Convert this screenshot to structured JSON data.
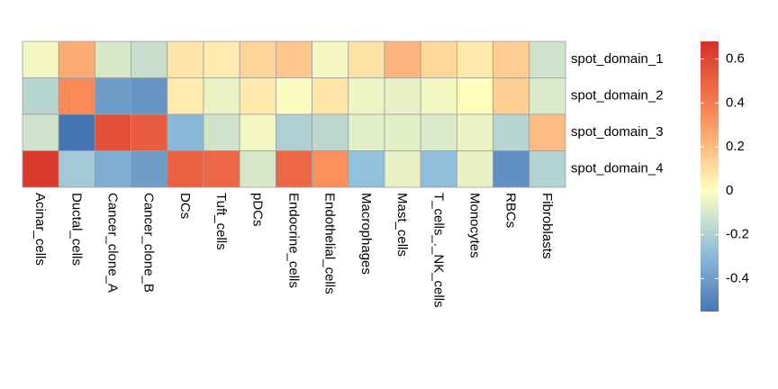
{
  "chart_data": {
    "type": "heatmap",
    "title": "",
    "xlabel": "",
    "ylabel": "",
    "columns": [
      "Acinar_cells",
      "Ductal_cells",
      "Cancer_clone_A",
      "Cancer_clone_B",
      "DCs",
      "Tuft_cells",
      "pDCs",
      "Endocrine_cells",
      "Endothelial_cells",
      "Macrophages",
      "Mast_cells",
      "T_cells_._NK_cells",
      "Monocytes",
      "RBCs",
      "Fibroblasts"
    ],
    "rows": [
      "spot_domain_1",
      "spot_domain_2",
      "spot_domain_3",
      "spot_domain_4"
    ],
    "values": [
      [
        -0.03,
        0.25,
        -0.1,
        -0.14,
        0.08,
        0.06,
        0.13,
        0.17,
        -0.03,
        0.09,
        0.22,
        0.12,
        0.07,
        0.15,
        -0.12
      ],
      [
        -0.18,
        0.35,
        -0.4,
        -0.43,
        0.06,
        -0.05,
        0.07,
        -0.01,
        0.08,
        -0.04,
        -0.06,
        -0.03,
        0.01,
        0.15,
        -0.09
      ],
      [
        -0.12,
        -0.55,
        0.56,
        0.52,
        -0.3,
        -0.12,
        -0.03,
        -0.2,
        -0.17,
        -0.07,
        -0.07,
        -0.09,
        -0.05,
        -0.18,
        0.2
      ],
      [
        0.64,
        -0.23,
        -0.34,
        -0.4,
        0.5,
        0.48,
        -0.1,
        0.48,
        0.33,
        -0.27,
        -0.06,
        -0.28,
        -0.06,
        -0.45,
        -0.19
      ]
    ],
    "color_range": [
      -0.55,
      0.68
    ],
    "colorbar_ticks": [
      "0.6",
      "0.4",
      "0.2",
      "0",
      "-0.2",
      "-0.4"
    ],
    "colorbar_tick_values": [
      0.6,
      0.4,
      0.2,
      0,
      -0.2,
      -0.4
    ],
    "colors": {
      "low": "#4575b4",
      "mid": "#ffffbf",
      "high": "#d73027",
      "cell_border": "#9e9e9e"
    },
    "legend_placement": "right"
  }
}
